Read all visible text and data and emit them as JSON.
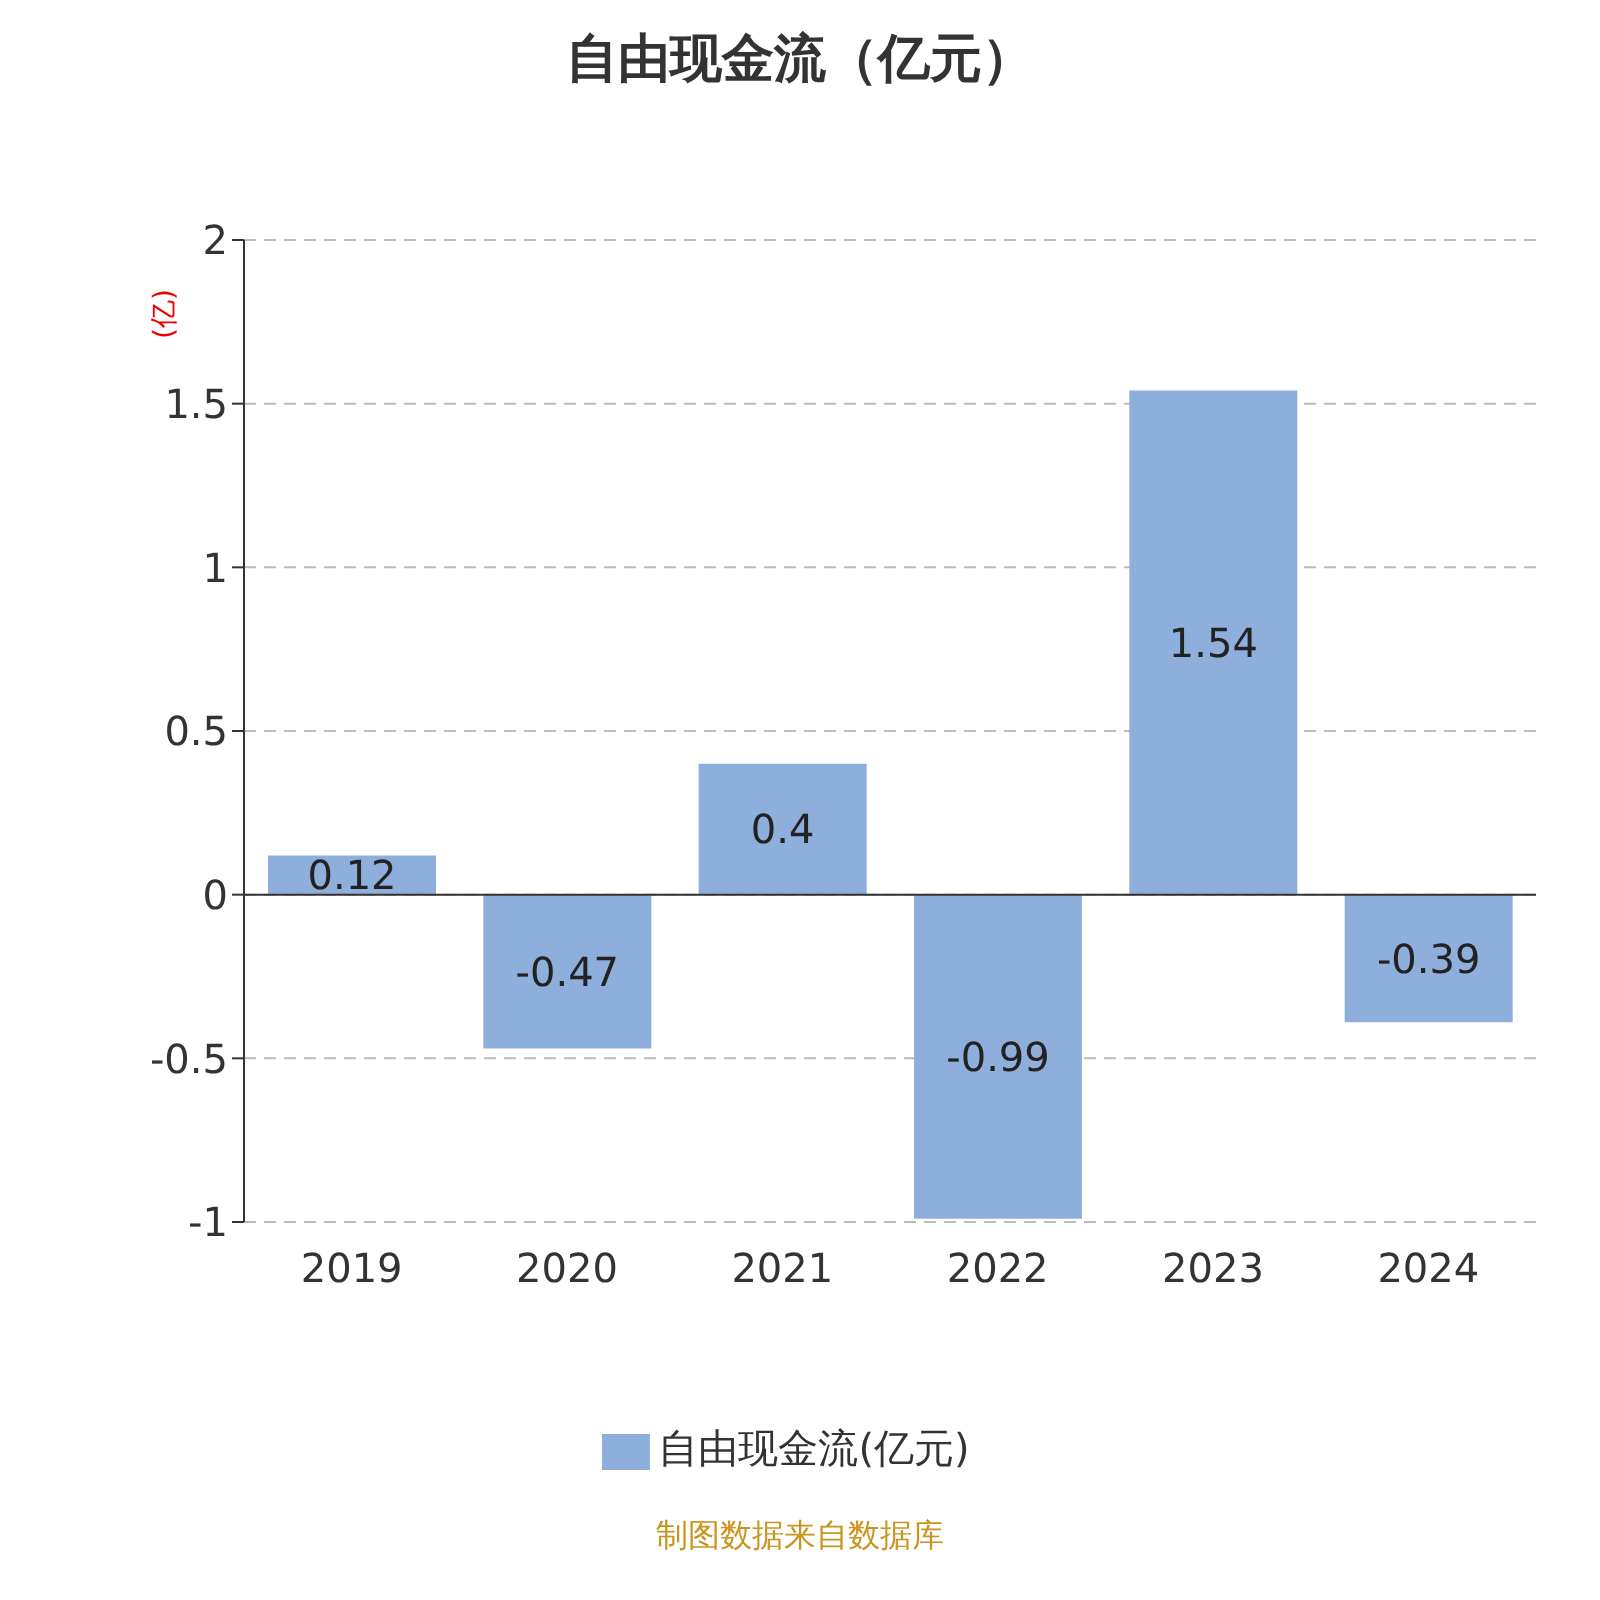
{
  "chart_data": {
    "type": "bar",
    "title": "自由现金流（亿元）",
    "ylabel": "(亿)",
    "categories": [
      "2019",
      "2020",
      "2021",
      "2022",
      "2023",
      "2024"
    ],
    "series": [
      {
        "name": "自由现金流(亿元)",
        "color": "#8eaedc",
        "values": [
          0.12,
          -0.47,
          0.4,
          -0.99,
          1.54,
          -0.39
        ]
      }
    ],
    "ylim": [
      -1,
      2
    ],
    "yticks": [
      -1,
      -0.5,
      0,
      0.5,
      1,
      1.5,
      2
    ],
    "grid": "y",
    "legend": "bottom",
    "data_labels": true,
    "annotations": [
      "制图数据来自数据库"
    ]
  }
}
